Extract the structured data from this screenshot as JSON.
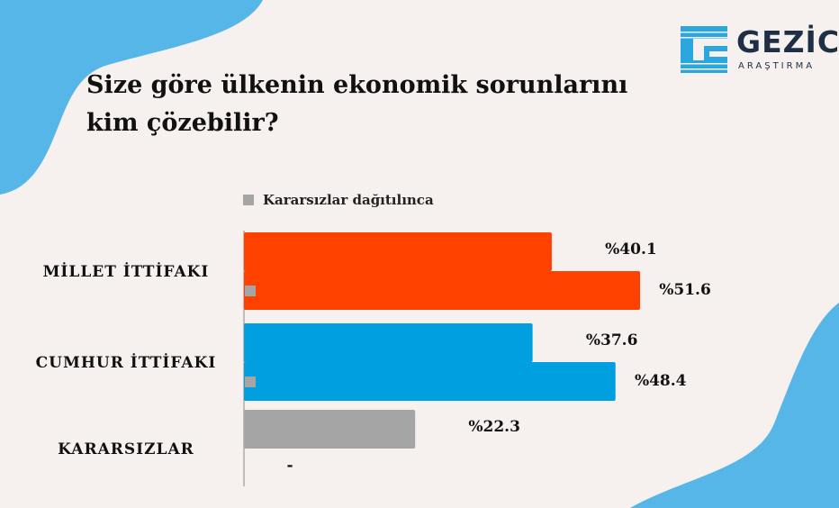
{
  "title": "Size göre ülkenin ekonomik sorunlarını kim çözebilir?",
  "logo": {
    "name": "GEZİCİ",
    "subtitle": "ARAŞTIRMA"
  },
  "colors": {
    "background": "#f6f0ee",
    "blob": "#55b6e7",
    "millet": "#ff4100",
    "cumhur": "#009fe0",
    "kararsiz": "#a5a5a5",
    "logo": "#1f2f45"
  },
  "chart_data": {
    "type": "bar",
    "orientation": "horizontal",
    "title": "Size göre ülkenin ekonomik sorunlarını kim çözebilir?",
    "categories": [
      "MİLLET İTTİFAKI",
      "CUMHUR İTTİFAKI",
      "KARARSIZLAR"
    ],
    "legend": [
      "Kararsızlar dağıtılınca"
    ],
    "legend_position": "top-left",
    "series": [
      {
        "values": [
          40.1,
          37.6,
          22.3
        ],
        "labels": [
          "%40.1",
          "%37.6",
          "%22.3"
        ]
      },
      {
        "name": "Kararsızlar dağıtılınca",
        "values": [
          51.6,
          48.4,
          null
        ],
        "labels": [
          "%51.6",
          "%48.4",
          "-"
        ]
      }
    ],
    "xlim": [
      0,
      55
    ],
    "grid": false
  }
}
